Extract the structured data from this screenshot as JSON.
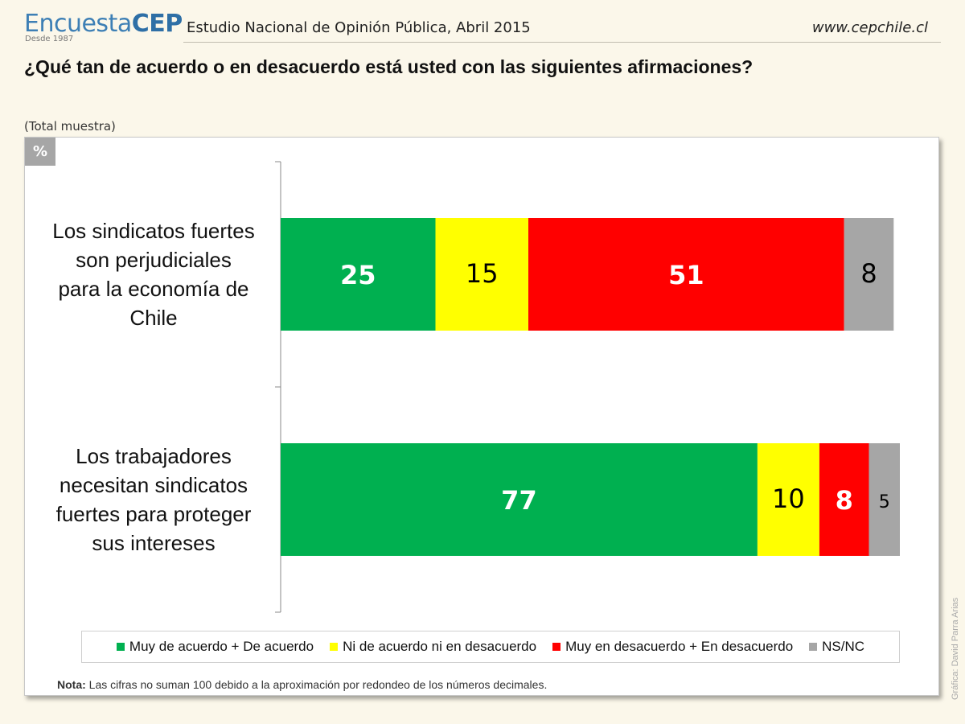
{
  "header": {
    "logo_light": "Encuesta",
    "logo_bold": "CEP",
    "logo_since": "Desde 1987",
    "study": "Estudio Nacional de Opinión Pública, Abril 2015",
    "url": "www.cepchile.cl"
  },
  "question": "¿Qué tan de acuerdo o en desacuerdo está usted con las siguientes afirmaciones?",
  "sample": "(Total muestra)",
  "unit_badge": "%",
  "note": {
    "label": "Nota:",
    "text": " Las cifras no suman 100 debido a la aproximación por redondeo de los números decimales."
  },
  "credit": "Gráfica: David Parra Arias",
  "colors": {
    "green": "#00b050",
    "yellow": "#ffff00",
    "red": "#ff0000",
    "gray": "#a6a6a6"
  },
  "chart_data": {
    "type": "bar",
    "orientation": "horizontal-stacked",
    "categories": [
      [
        "Los sindicatos fuertes",
        "son perjudiciales",
        "para la economía de",
        "Chile"
      ],
      [
        "Los trabajadores",
        "necesitan sindicatos",
        "fuertes para proteger",
        "sus intereses"
      ]
    ],
    "series": [
      {
        "name": "Muy de acuerdo + De acuerdo",
        "color": "#00b050",
        "values": [
          25,
          77
        ],
        "label_color": "#ffffff",
        "label_bold": true
      },
      {
        "name": "Ni de acuerdo ni en desacuerdo",
        "color": "#ffff00",
        "values": [
          15,
          10
        ],
        "label_color": "#000000",
        "label_bold": false
      },
      {
        "name": "Muy en desacuerdo + En desacuerdo",
        "color": "#ff0000",
        "values": [
          51,
          8
        ],
        "label_color": "#ffffff",
        "label_bold": true
      },
      {
        "name": "NS/NC",
        "color": "#a6a6a6",
        "values": [
          8,
          5
        ],
        "label_color": "#000000",
        "label_bold": false
      }
    ],
    "xlim": [
      0,
      100
    ],
    "legend": "bottom"
  }
}
